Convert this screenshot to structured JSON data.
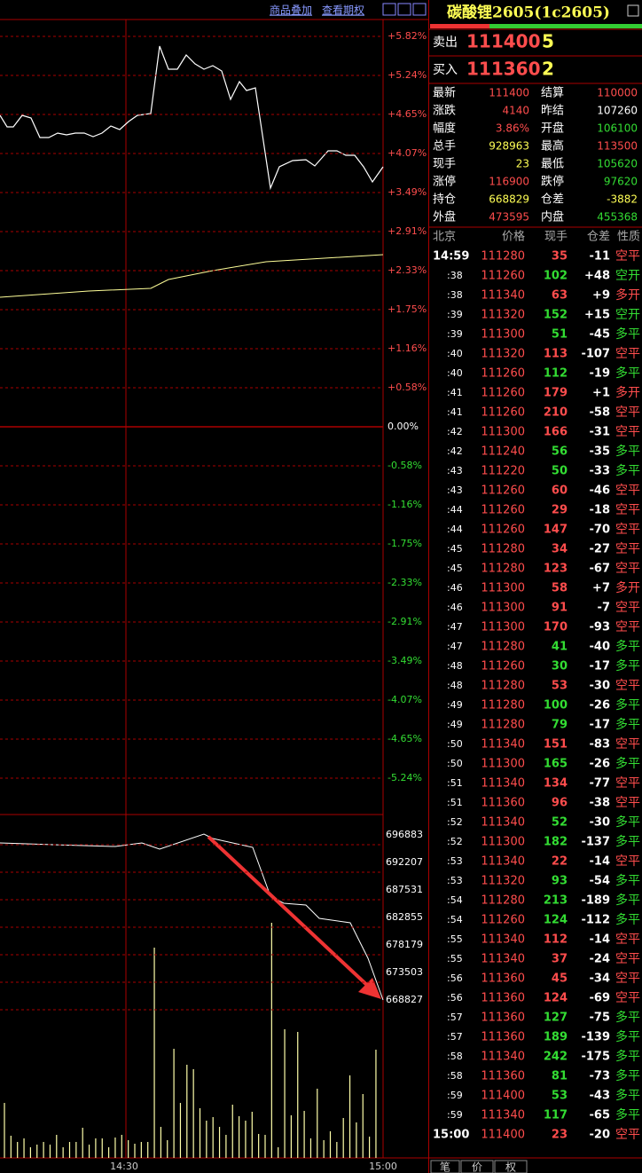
{
  "toolbar": [
    "商品叠加",
    "查看期权"
  ],
  "price_axis": {
    "labels": [
      "+5.82%",
      "+5.24%",
      "+4.65%",
      "+4.07%",
      "+3.49%",
      "+2.91%",
      "+2.33%",
      "+1.75%",
      "+1.16%",
      "+0.58%",
      "0.00%",
      "-0.58%",
      "-1.16%",
      "-1.75%",
      "-2.33%",
      "-2.91%",
      "-3.49%",
      "-4.07%",
      "-4.65%",
      "-5.24%"
    ]
  },
  "oi_axis": {
    "labels": [
      696883,
      692207,
      687531,
      682855,
      678179,
      673503,
      668827
    ]
  },
  "time_axis": [
    "14:30",
    "15:00"
  ],
  "quote": {
    "title": "碳酸锂2605(1c2605)",
    "sell": {
      "label": "卖出",
      "price": 111400,
      "volume": 5
    },
    "buy": {
      "label": "买入",
      "price": 111360,
      "volume": 2
    },
    "stats": [
      [
        {
          "label": "最新",
          "value": 111400,
          "color": "#ff4d4d"
        },
        {
          "label": "结算",
          "value": 110000,
          "color": "#ff4d4d"
        }
      ],
      [
        {
          "label": "涨跌",
          "value": 4140,
          "color": "#ff4d4d"
        },
        {
          "label": "昨结",
          "value": 107260,
          "color": "#ffffff"
        }
      ],
      [
        {
          "label": "幅度",
          "value": "3.86%",
          "color": "#ff4d4d"
        },
        {
          "label": "开盘",
          "value": 106100,
          "color": "#33dd33"
        }
      ],
      [
        {
          "label": "总手",
          "value": 928963,
          "color": "#ffff55"
        },
        {
          "label": "最高",
          "value": 113500,
          "color": "#ff4d4d"
        }
      ],
      [
        {
          "label": "现手",
          "value": 23,
          "color": "#ffff55"
        },
        {
          "label": "最低",
          "value": 105620,
          "color": "#33dd33"
        }
      ],
      [
        {
          "label": "涨停",
          "value": 116900,
          "color": "#ff4d4d"
        },
        {
          "label": "跌停",
          "value": 97620,
          "color": "#33dd33"
        }
      ],
      [
        {
          "label": "持仓",
          "value": 668829,
          "color": "#ffff55"
        },
        {
          "label": "仓差",
          "value": -3882,
          "color": "#ffff55"
        }
      ],
      [
        {
          "label": "外盘",
          "value": 473595,
          "color": "#ff4d4d"
        },
        {
          "label": "内盘",
          "value": 455368,
          "color": "#33dd33"
        }
      ]
    ]
  },
  "trades": {
    "header": [
      "北京",
      "价格",
      "现手",
      "仓差",
      "性质"
    ],
    "rows": [
      [
        "14:59",
        111280,
        35,
        -11,
        "空平"
      ],
      [
        ":38",
        111260,
        102,
        "+48",
        "空开"
      ],
      [
        ":38",
        111340,
        63,
        "+9",
        "多开"
      ],
      [
        ":39",
        111320,
        152,
        "+15",
        "空开"
      ],
      [
        ":39",
        111300,
        51,
        -45,
        "多平"
      ],
      [
        ":40",
        111320,
        113,
        -107,
        "空平"
      ],
      [
        ":40",
        111260,
        112,
        -19,
        "多平"
      ],
      [
        ":41",
        111260,
        179,
        "+1",
        "多开"
      ],
      [
        ":41",
        111260,
        210,
        -58,
        "空平"
      ],
      [
        ":42",
        111300,
        166,
        -31,
        "空平"
      ],
      [
        ":42",
        111240,
        56,
        -35,
        "多平"
      ],
      [
        ":43",
        111220,
        50,
        -33,
        "多平"
      ],
      [
        ":43",
        111260,
        60,
        -46,
        "空平"
      ],
      [
        ":44",
        111260,
        29,
        -18,
        "空平"
      ],
      [
        ":44",
        111260,
        147,
        -70,
        "空平"
      ],
      [
        ":45",
        111280,
        34,
        -27,
        "空平"
      ],
      [
        ":45",
        111280,
        123,
        -67,
        "空平"
      ],
      [
        ":46",
        111300,
        58,
        "+7",
        "多开"
      ],
      [
        ":46",
        111300,
        91,
        -7,
        "空平"
      ],
      [
        ":47",
        111300,
        170,
        -93,
        "空平"
      ],
      [
        ":47",
        111280,
        41,
        -40,
        "多平"
      ],
      [
        ":48",
        111260,
        30,
        -17,
        "多平"
      ],
      [
        ":48",
        111280,
        53,
        -30,
        "空平"
      ],
      [
        ":49",
        111280,
        100,
        -26,
        "多平"
      ],
      [
        ":49",
        111280,
        79,
        -17,
        "多平"
      ],
      [
        ":50",
        111340,
        151,
        -83,
        "空平"
      ],
      [
        ":50",
        111300,
        165,
        -26,
        "多平"
      ],
      [
        ":51",
        111340,
        134,
        -77,
        "空平"
      ],
      [
        ":51",
        111360,
        96,
        -38,
        "空平"
      ],
      [
        ":52",
        111340,
        52,
        -30,
        "多平"
      ],
      [
        ":52",
        111300,
        182,
        -137,
        "多平"
      ],
      [
        ":53",
        111340,
        22,
        -14,
        "空平"
      ],
      [
        ":53",
        111320,
        93,
        -54,
        "多平"
      ],
      [
        ":54",
        111280,
        213,
        -189,
        "多平"
      ],
      [
        ":54",
        111260,
        124,
        -112,
        "多平"
      ],
      [
        ":55",
        111340,
        112,
        -14,
        "空平"
      ],
      [
        ":55",
        111340,
        37,
        -24,
        "空平"
      ],
      [
        ":56",
        111360,
        45,
        -34,
        "空平"
      ],
      [
        ":56",
        111360,
        124,
        -69,
        "空平"
      ],
      [
        ":57",
        111360,
        127,
        -75,
        "多平"
      ],
      [
        ":57",
        111360,
        189,
        -139,
        "多平"
      ],
      [
        ":58",
        111340,
        242,
        -175,
        "多平"
      ],
      [
        ":58",
        111360,
        81,
        -73,
        "多平"
      ],
      [
        ":59",
        111400,
        53,
        -43,
        "多平"
      ],
      [
        ":59",
        111340,
        117,
        -65,
        "多平"
      ],
      [
        "15:00",
        111400,
        23,
        -20,
        "空平"
      ]
    ]
  },
  "tabs": [
    "笔",
    "价",
    "权"
  ]
}
